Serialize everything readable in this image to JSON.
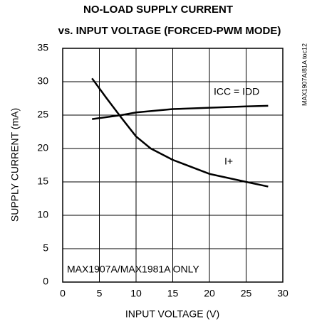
{
  "chart_data": {
    "type": "line",
    "title": "NO-LOAD SUPPLY CURRENT",
    "subtitle": "vs. INPUT VOLTAGE (FORCED-PWM MODE)",
    "x_label": "INPUT VOLTAGE (V)",
    "y_label": "SUPPLY CURRENT (mA)",
    "annotations": [
      "MAX1907A/MAX1981A ONLY",
      "MAX1907A/81A toc12"
    ],
    "xlim": [
      0,
      30
    ],
    "xticks": [
      0,
      5,
      10,
      15,
      20,
      25,
      30
    ],
    "ylim": [
      0,
      35
    ],
    "yticks": [
      0,
      5,
      10,
      15,
      20,
      25,
      30,
      35
    ],
    "grid": true,
    "series": [
      {
        "name": "ICC = IDD",
        "color": "#000000",
        "x": [
          4,
          8,
          10,
          15,
          20,
          25,
          28
        ],
        "values": [
          24.4,
          25,
          25.4,
          25.9,
          26.1,
          26.3,
          26.4
        ]
      },
      {
        "name": "I+",
        "color": "#000000",
        "x": [
          4,
          6,
          8,
          10,
          12,
          15,
          20,
          25,
          28
        ],
        "values": [
          30.5,
          27.5,
          24.6,
          21.8,
          20,
          18.3,
          16.2,
          15,
          14.3
        ]
      }
    ]
  }
}
